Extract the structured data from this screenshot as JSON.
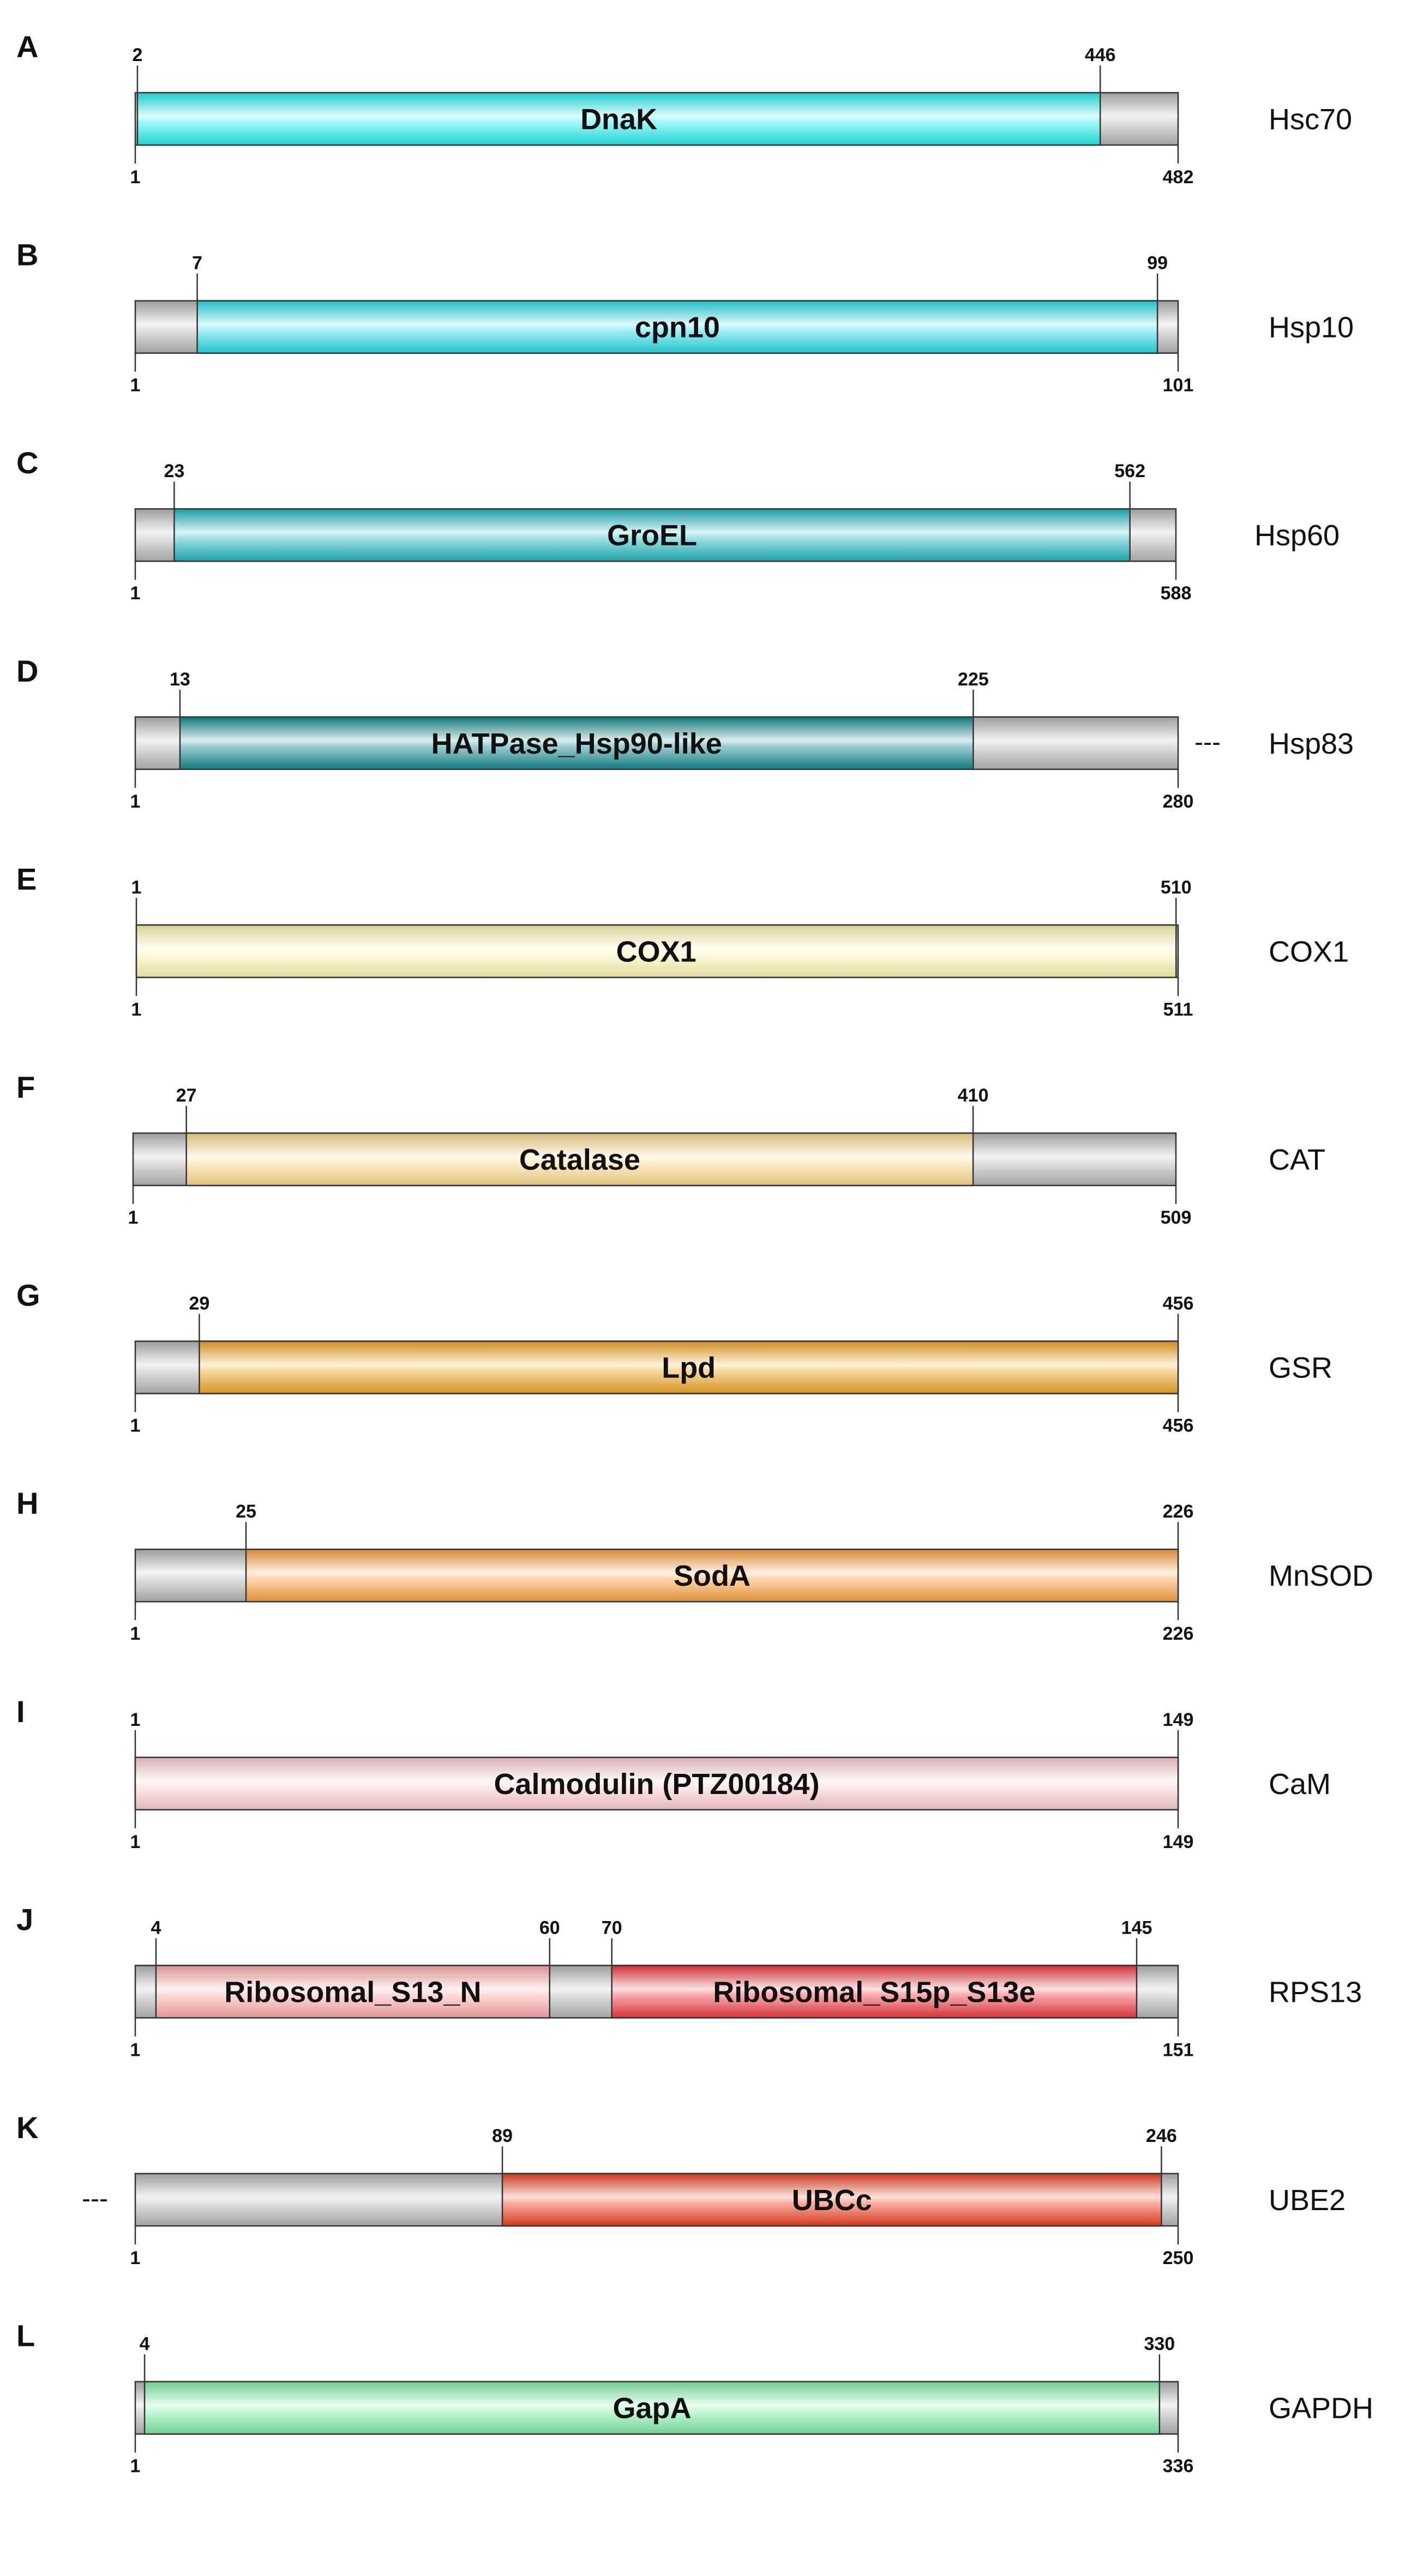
{
  "figure": {
    "panels": [
      {
        "letter": "A",
        "protein": "Hsc70",
        "length": 482,
        "domains": [
          {
            "name": "DnaK",
            "start": 2,
            "end": 446,
            "start_label": "2",
            "end_label": "446",
            "color": "#22f0f0"
          }
        ],
        "start_label": "1",
        "end_label": "482",
        "dash": ""
      },
      {
        "letter": "B",
        "protein": "Hsp10",
        "length": 101,
        "domains": [
          {
            "name": "cpn10",
            "start": 7,
            "end": 99,
            "start_label": "7",
            "end_label": "99",
            "color": "#26dde8"
          }
        ],
        "start_label": "1",
        "end_label": "101",
        "dash": ""
      },
      {
        "letter": "C",
        "protein": "Hsp60",
        "length": 588,
        "domains": [
          {
            "name": "GroEL",
            "start": 23,
            "end": 562,
            "start_label": "23",
            "end_label": "562",
            "color": "#1cb8c0"
          }
        ],
        "start_label": "1",
        "end_label": "588",
        "dash": ""
      },
      {
        "letter": "D",
        "protein": "Hsp83",
        "length": 280,
        "domains": [
          {
            "name": "HATPase_Hsp90-like",
            "start": 13,
            "end": 225,
            "start_label": "13",
            "end_label": "225",
            "color": "#148a90"
          }
        ],
        "start_label": "1",
        "end_label": "280",
        "dash": "---"
      },
      {
        "letter": "E",
        "protein": "COX1",
        "length": 511,
        "domains": [
          {
            "name": "COX1",
            "start": 1,
            "end": 510,
            "start_label": "1",
            "end_label": "510",
            "color": "#fff9b0"
          }
        ],
        "start_label": "1",
        "end_label": "511",
        "dash": ""
      },
      {
        "letter": "F",
        "protein": "CAT",
        "length": 509,
        "domains": [
          {
            "name": "Catalase",
            "start": 27,
            "end": 410,
            "start_label": "27",
            "end_label": "410",
            "color": "#ffd98a"
          }
        ],
        "start_label": "1",
        "end_label": "509",
        "dash": ""
      },
      {
        "letter": "G",
        "protein": "GSR",
        "length": 456,
        "domains": [
          {
            "name": "Lpd",
            "start": 29,
            "end": 456,
            "start_label": "29",
            "end_label": "456",
            "color": "#f0a820"
          }
        ],
        "start_label": "1",
        "end_label": "456",
        "dash": ""
      },
      {
        "letter": "H",
        "protein": "MnSOD",
        "length": 226,
        "domains": [
          {
            "name": "SodA",
            "start": 25,
            "end": 226,
            "start_label": "25",
            "end_label": "226",
            "color": "#ffa040"
          }
        ],
        "start_label": "1",
        "end_label": "226",
        "dash": ""
      },
      {
        "letter": "I",
        "protein": "CaM",
        "length": 149,
        "domains": [
          {
            "name": "Calmodulin (PTZ00184)",
            "start": 1,
            "end": 149,
            "start_label": "1",
            "end_label": "149",
            "color": "#ffd0d0"
          }
        ],
        "start_label": "1",
        "end_label": "149",
        "dash": ""
      },
      {
        "letter": "J",
        "protein": "RPS13",
        "length": 151,
        "domains": [
          {
            "name": "Ribosomal_S13_N",
            "start": 4,
            "end": 60,
            "start_label": "4",
            "end_label": "60",
            "color": "#ffaaaa"
          },
          {
            "name": "Ribosomal_S15p_S13e",
            "start": 70,
            "end": 145,
            "start_label": "70",
            "end_label": "145",
            "color": "#f03a40"
          }
        ],
        "start_label": "1",
        "end_label": "151",
        "dash": ""
      },
      {
        "letter": "K",
        "protein": "UBE2",
        "length": 250,
        "domains": [
          {
            "name": "UBCc",
            "start": 89,
            "end": 246,
            "start_label": "89",
            "end_label": "246",
            "color": "#f04020"
          }
        ],
        "start_label": "1",
        "end_label": "250",
        "dash": "---"
      },
      {
        "letter": "L",
        "protein": "GAPDH",
        "length": 336,
        "domains": [
          {
            "name": "GapA",
            "start": 4,
            "end": 330,
            "start_label": "4",
            "end_label": "330",
            "color": "#7ff0a8"
          }
        ],
        "start_label": "1",
        "end_label": "336",
        "dash": ""
      }
    ]
  }
}
